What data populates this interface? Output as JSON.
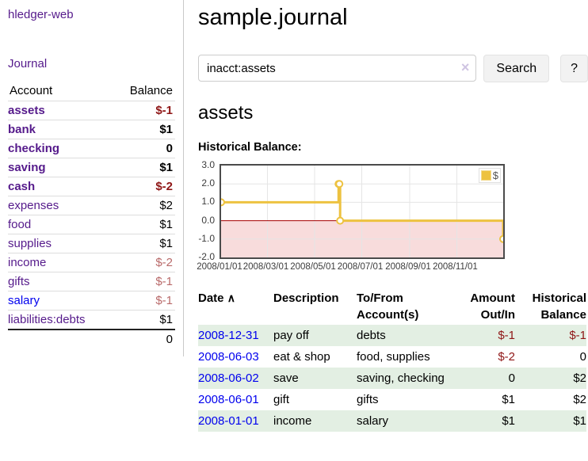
{
  "app": {
    "title": "hledger-web"
  },
  "sidebar": {
    "nav_journal": "Journal",
    "accounts": {
      "header_account": "Account",
      "header_balance": "Balance",
      "rows": [
        {
          "name": "assets",
          "balance": "$-1"
        },
        {
          "name": "bank",
          "balance": "$1"
        },
        {
          "name": "checking",
          "balance": "0"
        },
        {
          "name": "saving",
          "balance": "$1"
        },
        {
          "name": "cash",
          "balance": "$-2"
        },
        {
          "name": "expenses",
          "balance": "$2"
        },
        {
          "name": "food",
          "balance": "$1"
        },
        {
          "name": "supplies",
          "balance": "$1"
        },
        {
          "name": "income",
          "balance": "$-2"
        },
        {
          "name": "gifts",
          "balance": "$-1"
        },
        {
          "name": "salary",
          "balance": "$-1"
        },
        {
          "name": "liabilities:debts",
          "balance": "$1"
        }
      ],
      "total": "0"
    }
  },
  "main": {
    "title": "sample.journal",
    "search": {
      "value": "inacct:assets",
      "clear_icon": "×",
      "button_label": "Search",
      "help_label": "?"
    },
    "account_heading": "assets",
    "chart_label": "Historical Balance:"
  },
  "chart_data": {
    "type": "line",
    "title": "Historical Balance",
    "x_range": [
      "2008-01-01",
      "2008-12-31"
    ],
    "ylim": [
      -2,
      3
    ],
    "y_ticks": [
      3.0,
      2.0,
      1.0,
      0.0,
      -1.0,
      -2.0
    ],
    "x_ticks": [
      "2008/01/01",
      "2008/03/01",
      "2008/05/01",
      "2008/07/01",
      "2008/09/01",
      "2008/11/01"
    ],
    "series": [
      {
        "name": "$",
        "color": "#edc240",
        "step": true,
        "points": [
          {
            "date": "2008-01-01",
            "value": 1
          },
          {
            "date": "2008-06-01",
            "value": 2
          },
          {
            "date": "2008-06-02",
            "value": 2
          },
          {
            "date": "2008-06-03",
            "value": 0
          },
          {
            "date": "2008-12-31",
            "value": -1
          }
        ]
      }
    ],
    "legend": {
      "label": "$",
      "swatch_color": "#edc240",
      "position": "top-right"
    },
    "grid": true,
    "gridline_color": "#e5e5e5",
    "negative_region_fill": "#f8dcdc",
    "zero_line_color": "#a40000",
    "border_color": "#4b4b4b"
  },
  "register": {
    "headers": {
      "date": "Date",
      "sort_indicator": "∧",
      "description": "Description",
      "accounts": "To/From Account(s)",
      "amount": "Amount Out/In",
      "balance": "Historical Balance"
    },
    "rows": [
      {
        "date": "2008-12-31",
        "description": "pay off",
        "accounts": "debts",
        "amount": "$-1",
        "balance": "$-1"
      },
      {
        "date": "2008-06-03",
        "description": "eat & shop",
        "accounts": "food, supplies",
        "amount": "$-2",
        "balance": "0"
      },
      {
        "date": "2008-06-02",
        "description": "save",
        "accounts": "saving, checking",
        "amount": "0",
        "balance": "$2"
      },
      {
        "date": "2008-06-01",
        "description": "gift",
        "accounts": "gifts",
        "amount": "$1",
        "balance": "$2"
      },
      {
        "date": "2008-01-01",
        "description": "income",
        "accounts": "salary",
        "amount": "$1",
        "balance": "$1"
      }
    ]
  },
  "colors": {
    "link_visited_purple": "#551a8b",
    "link_blue": "#0000ee",
    "negative_bold_red": "#8f1616",
    "negative_light_red": "#b96a6a",
    "row_stripe_green": "#e3efe3",
    "chart_line_yellow": "#edc240",
    "divider_gray": "#c9c9c9"
  }
}
